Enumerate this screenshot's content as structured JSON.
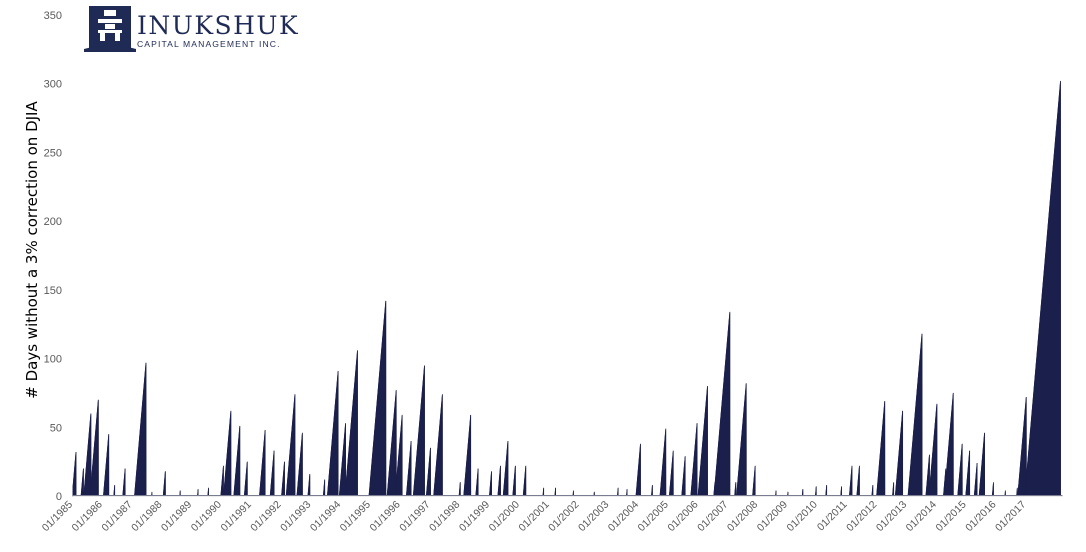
{
  "logo": {
    "name": "INUKSHUK",
    "tagline": "CAPITAL MANAGEMENT INC.",
    "color": "#1f2a55"
  },
  "chart_data": {
    "type": "area",
    "ylabel": "# Days without a 3% correction on DJIA",
    "xlabel": "",
    "ylim": [
      0,
      350
    ],
    "yticks": [
      0,
      50,
      100,
      150,
      200,
      250,
      300,
      350
    ],
    "xlim": [
      1985.0,
      2018.2
    ],
    "grid": false,
    "fill_color": "#1b1f4b",
    "categories": [
      "01/1985",
      "01/1986",
      "01/1987",
      "01/1988",
      "01/1989",
      "01/1990",
      "01/1991",
      "01/1992",
      "01/1993",
      "01/1994",
      "01/1995",
      "01/1996",
      "01/1997",
      "01/1998",
      "01/1999",
      "01/2000",
      "01/2001",
      "01/2002",
      "01/2003",
      "01/2004",
      "01/2005",
      "01/2006",
      "01/2007",
      "01/2008",
      "01/2009",
      "01/2010",
      "01/2011",
      "01/2012",
      "01/2013",
      "01/2014",
      "01/2015",
      "01/2016",
      "01/2017"
    ],
    "series": [
      {
        "peaks": [
          [
            1985.1,
            32
          ],
          [
            1985.35,
            20
          ],
          [
            1985.6,
            60
          ],
          [
            1985.85,
            70
          ],
          [
            1986.2,
            45
          ],
          [
            1986.4,
            8
          ],
          [
            1986.75,
            20
          ],
          [
            1987.45,
            97
          ],
          [
            1987.65,
            3
          ],
          [
            1988.1,
            18
          ],
          [
            1988.6,
            4
          ],
          [
            1989.2,
            5
          ],
          [
            1989.55,
            6
          ],
          [
            1990.05,
            22
          ],
          [
            1990.3,
            62
          ],
          [
            1990.6,
            51
          ],
          [
            1990.85,
            25
          ],
          [
            1991.45,
            48
          ],
          [
            1991.75,
            33
          ],
          [
            1992.1,
            25
          ],
          [
            1992.45,
            74
          ],
          [
            1992.7,
            46
          ],
          [
            1992.95,
            16
          ],
          [
            1993.45,
            12
          ],
          [
            1993.9,
            91
          ],
          [
            1994.15,
            53
          ],
          [
            1994.55,
            106
          ],
          [
            1995.15,
            16
          ],
          [
            1995.5,
            142
          ],
          [
            1995.85,
            77
          ],
          [
            1996.05,
            59
          ],
          [
            1996.35,
            40
          ],
          [
            1996.8,
            95
          ],
          [
            1997.0,
            35
          ],
          [
            1997.4,
            74
          ],
          [
            1998.0,
            10
          ],
          [
            1998.35,
            59
          ],
          [
            1998.6,
            20
          ],
          [
            1999.05,
            18
          ],
          [
            1999.35,
            22
          ],
          [
            1999.6,
            40
          ],
          [
            1999.85,
            22
          ],
          [
            2000.2,
            22
          ],
          [
            2000.8,
            6
          ],
          [
            2001.2,
            6
          ],
          [
            2001.8,
            4
          ],
          [
            2002.5,
            3
          ],
          [
            2003.3,
            6
          ],
          [
            2003.6,
            5
          ],
          [
            2004.05,
            38
          ],
          [
            2004.45,
            8
          ],
          [
            2004.9,
            49
          ],
          [
            2005.15,
            33
          ],
          [
            2005.55,
            29
          ],
          [
            2005.95,
            53
          ],
          [
            2006.3,
            80
          ],
          [
            2006.55,
            10
          ],
          [
            2007.05,
            134
          ],
          [
            2007.25,
            10
          ],
          [
            2007.6,
            82
          ],
          [
            2007.9,
            22
          ],
          [
            2008.6,
            4
          ],
          [
            2009.0,
            3
          ],
          [
            2009.5,
            5
          ],
          [
            2009.95,
            7
          ],
          [
            2010.3,
            8
          ],
          [
            2010.8,
            7
          ],
          [
            2011.15,
            22
          ],
          [
            2011.4,
            22
          ],
          [
            2011.85,
            8
          ],
          [
            2012.25,
            69
          ],
          [
            2012.55,
            10
          ],
          [
            2012.85,
            62
          ],
          [
            2013.5,
            118
          ],
          [
            2013.75,
            30
          ],
          [
            2014.0,
            67
          ],
          [
            2014.3,
            20
          ],
          [
            2014.55,
            75
          ],
          [
            2014.85,
            38
          ],
          [
            2015.1,
            33
          ],
          [
            2015.35,
            24
          ],
          [
            2015.6,
            46
          ],
          [
            2015.9,
            10
          ],
          [
            2016.3,
            4
          ],
          [
            2016.7,
            6
          ],
          [
            2017.0,
            72
          ],
          [
            2017.2,
            5
          ],
          [
            2018.15,
            302
          ]
        ]
      }
    ]
  }
}
